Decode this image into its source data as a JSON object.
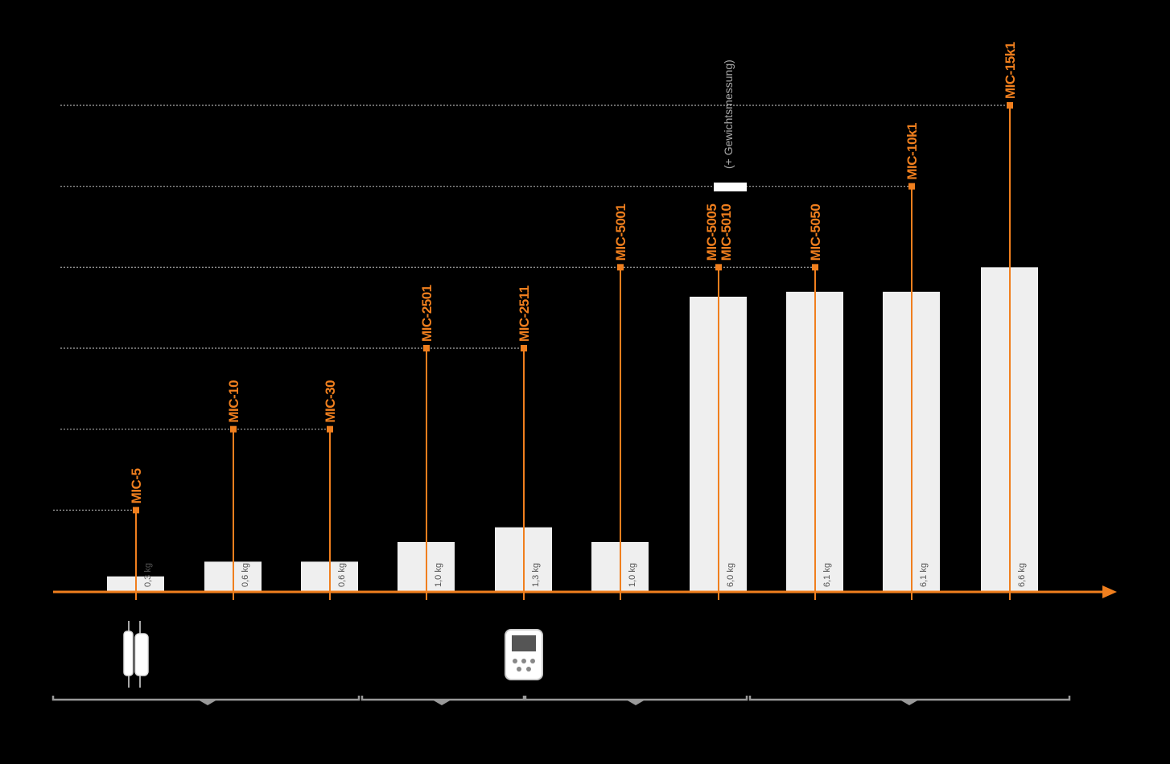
{
  "chart_data": {
    "type": "bar",
    "annotation": "(+ Gewichtsmessung)",
    "categories": [
      {
        "names": [
          "MIC-5"
        ],
        "level": 1,
        "weight": 0.3,
        "weight_label": "0,3 kg"
      },
      {
        "names": [
          "MIC-10"
        ],
        "level": 2,
        "weight": 0.6,
        "weight_label": "0,6 kg"
      },
      {
        "names": [
          "MIC-30"
        ],
        "level": 2,
        "weight": 0.6,
        "weight_label": "0,6 kg"
      },
      {
        "names": [
          "MIC-2501"
        ],
        "level": 3,
        "weight": 1.0,
        "weight_label": "1,0 kg"
      },
      {
        "names": [
          "MIC-2511"
        ],
        "level": 3,
        "weight": 1.3,
        "weight_label": "1,3 kg"
      },
      {
        "names": [
          "MIC-5001"
        ],
        "level": 4,
        "weight": 1.0,
        "weight_label": "1,0 kg"
      },
      {
        "names": [
          "MIC-5005",
          "MIC-5010"
        ],
        "level": 4,
        "weight": 6.0,
        "weight_label": "6,0 kg"
      },
      {
        "names": [
          "MIC-5050"
        ],
        "level": 4,
        "weight": 6.1,
        "weight_label": "6,1 kg"
      },
      {
        "names": [
          "MIC-10k1"
        ],
        "level": 5,
        "weight": 6.1,
        "weight_label": "6,1 kg"
      },
      {
        "names": [
          "MIC-15k1"
        ],
        "level": 6,
        "weight": 6.6,
        "weight_label": "6,6 kg"
      }
    ],
    "ylim": [
      0,
      6
    ],
    "yticks": [
      1,
      2,
      3,
      4,
      5,
      6
    ],
    "y2lim": [
      0,
      9.9
    ],
    "grid": true,
    "color": "#f07f1e",
    "bar_color": "#efefef"
  }
}
